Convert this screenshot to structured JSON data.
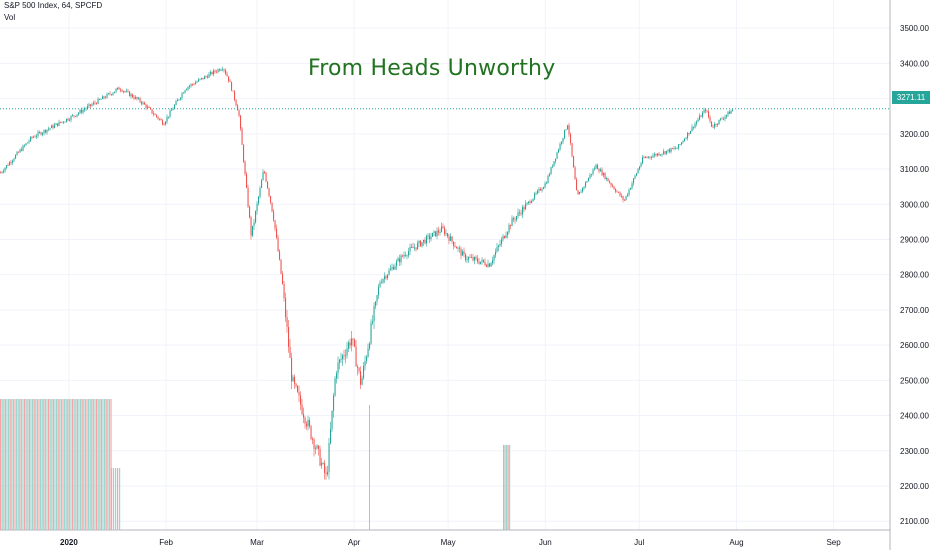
{
  "header": {
    "symbol": "S&P 500 Index, 64, SPCFD",
    "volume_label": "Vol"
  },
  "annotation": {
    "text": "From Heads Unworthy",
    "color": "#217321"
  },
  "last_price": {
    "label": "3271.11",
    "value": 3271.11,
    "color": "#26a69a"
  },
  "colors": {
    "up": "#26a69a",
    "down": "#ef5350",
    "vol_up": "#9fd4cf",
    "vol_down": "#f3a6a4",
    "grid": "#f0f3fa"
  },
  "chart_data": {
    "type": "candlestick",
    "title": "From Heads Unworthy",
    "series_name": "S&P 500 Index, 64, SPCFD",
    "x_range": [
      "2019-12-10",
      "2020-09-19"
    ],
    "ylim": [
      2075,
      3580
    ],
    "y_ticks": [
      2100,
      2200,
      2300,
      2400,
      2500,
      2600,
      2700,
      2800,
      2900,
      3000,
      3100,
      3200,
      3300,
      3400,
      3500
    ],
    "y_tick_labels": [
      "2100.00",
      "2200.00",
      "2300.00",
      "2400.00",
      "2500.00",
      "2600.00",
      "2700.00",
      "2800.00",
      "2900.00",
      "3000.00",
      "3100.00",
      "3200.00",
      "3300.00",
      "3400.00",
      "3500.00"
    ],
    "x_ticks": [
      {
        "label": "2020",
        "date": "2020-01-01"
      },
      {
        "label": "Feb",
        "date": "2020-02-01"
      },
      {
        "label": "Mar",
        "date": "2020-03-01"
      },
      {
        "label": "Apr",
        "date": "2020-04-01"
      },
      {
        "label": "May",
        "date": "2020-05-01"
      },
      {
        "label": "Jun",
        "date": "2020-06-01"
      },
      {
        "label": "Jul",
        "date": "2020-07-01"
      },
      {
        "label": "Aug",
        "date": "2020-08-01"
      },
      {
        "label": "Sep",
        "date": "2020-09-01"
      }
    ],
    "price_line": 3271.11,
    "close_path": [
      [
        "2019-12-10",
        3090
      ],
      [
        "2019-12-20",
        3190
      ],
      [
        "2020-01-02",
        3250
      ],
      [
        "2020-01-17",
        3330
      ],
      [
        "2020-01-24",
        3290
      ],
      [
        "2020-01-31",
        3230
      ],
      [
        "2020-02-07",
        3330
      ],
      [
        "2020-02-19",
        3390
      ],
      [
        "2020-02-21",
        3350
      ],
      [
        "2020-02-24",
        3260
      ],
      [
        "2020-02-28",
        2910
      ],
      [
        "2020-03-03",
        3100
      ],
      [
        "2020-03-06",
        2970
      ],
      [
        "2020-03-09",
        2770
      ],
      [
        "2020-03-12",
        2500
      ],
      [
        "2020-03-16",
        2400
      ],
      [
        "2020-03-20",
        2300
      ],
      [
        "2020-03-23",
        2220
      ],
      [
        "2020-03-26",
        2530
      ],
      [
        "2020-03-31",
        2620
      ],
      [
        "2020-04-03",
        2490
      ],
      [
        "2020-04-09",
        2780
      ],
      [
        "2020-04-17",
        2860
      ],
      [
        "2020-04-29",
        2930
      ],
      [
        "2020-05-06",
        2850
      ],
      [
        "2020-05-14",
        2830
      ],
      [
        "2020-05-21",
        2950
      ],
      [
        "2020-06-01",
        3060
      ],
      [
        "2020-06-08",
        3230
      ],
      [
        "2020-06-11",
        3020
      ],
      [
        "2020-06-17",
        3110
      ],
      [
        "2020-06-26",
        3010
      ],
      [
        "2020-07-02",
        3130
      ],
      [
        "2020-07-13",
        3160
      ],
      [
        "2020-07-22",
        3270
      ],
      [
        "2020-07-24",
        3220
      ],
      [
        "2020-07-31",
        3271.11
      ]
    ]
  }
}
